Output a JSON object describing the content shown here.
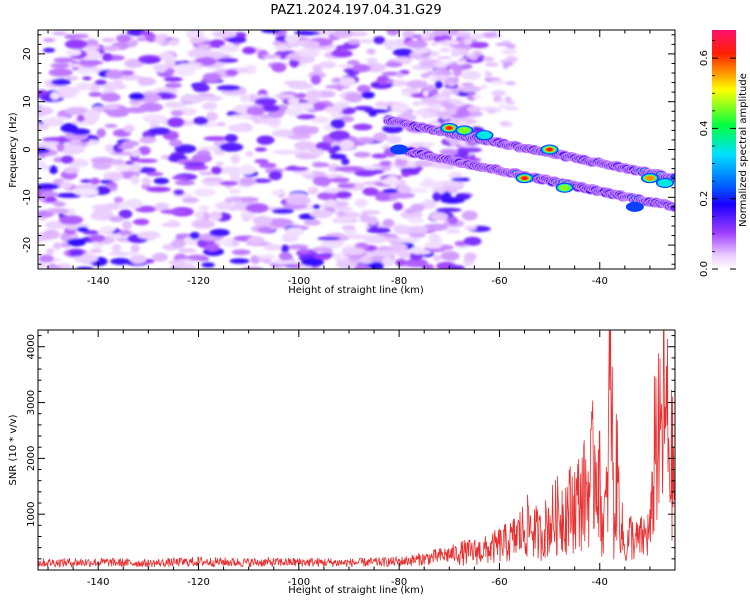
{
  "chart_data": [
    {
      "type": "heatmap",
      "title": "PAZ1.2024.197.04.31.G29",
      "xlabel": "Height of straight line (km)",
      "ylabel": "Frequency (Hz)",
      "xlim": [
        -152,
        -25
      ],
      "ylim": [
        -25,
        25
      ],
      "x_ticks": [
        -140,
        -120,
        -100,
        -80,
        -60,
        -40
      ],
      "y_ticks": [
        20,
        10,
        0,
        -10,
        -20
      ],
      "grid": false,
      "colorbar": {
        "label": "Normalized spectral amplitude",
        "range": [
          0,
          0.68
        ],
        "ticks": [
          0.0,
          0.2,
          0.4,
          0.6
        ],
        "colors": [
          "#ffffff",
          "#e8c8ff",
          "#a040ff",
          "#1a00ff",
          "#0060ff",
          "#00e0ff",
          "#00ff40",
          "#ffff00",
          "#ff2000",
          "#ff1070"
        ]
      },
      "noise_region": {
        "x_range": [
          -152,
          -70
        ],
        "y_range": [
          -25,
          25
        ],
        "level": 0.08
      },
      "ridges": [
        {
          "name": "",
          "x_start": -82,
          "y_start": 6,
          "x_end": -25,
          "y_end": -6,
          "peaks": [
            {
              "x": -70,
              "y": 4.5,
              "value": 0.62
            },
            {
              "x": -67,
              "y": 4,
              "value": 0.55
            },
            {
              "x": -63,
              "y": 3,
              "value": 0.35
            },
            {
              "x": -50,
              "y": 0,
              "value": 0.62
            },
            {
              "x": -30,
              "y": -6,
              "value": 0.6
            },
            {
              "x": -27,
              "y": -7,
              "value": 0.45
            }
          ]
        },
        {
          "name": "",
          "x_start": -80,
          "y_start": 0,
          "x_end": -25,
          "y_end": -12,
          "peaks": [
            {
              "x": -80,
              "y": 0,
              "value": 0.3
            },
            {
              "x": -55,
              "y": -6,
              "value": 0.64
            },
            {
              "x": -47,
              "y": -8,
              "value": 0.5
            },
            {
              "x": -33,
              "y": -12,
              "value": 0.3
            }
          ]
        }
      ]
    },
    {
      "type": "line",
      "title": "",
      "xlabel": "Height of straight line (km)",
      "ylabel": "SNR (10 * v/v)",
      "xlim": [
        -152,
        -25
      ],
      "ylim": [
        0,
        4300
      ],
      "x_ticks": [
        -140,
        -120,
        -100,
        -80,
        -60,
        -40
      ],
      "y_ticks": [
        1000,
        2000,
        3000,
        4000
      ],
      "grid": false,
      "color": "#e83030",
      "series": [
        {
          "name": "",
          "x": [
            -152,
            -140,
            -130,
            -120,
            -110,
            -100,
            -90,
            -80,
            -75,
            -70,
            -66,
            -62,
            -60,
            -58,
            -56,
            -54,
            -52,
            -50,
            -48,
            -46,
            -44,
            -42,
            -40.5,
            -39.5,
            -38.5,
            -37.8,
            -37.2,
            -36.6,
            -36,
            -35,
            -34,
            -33,
            -32,
            -31,
            -30.5,
            -30,
            -29.5,
            -29,
            -28.5,
            -28,
            -27.5,
            -27,
            -26.5,
            -26,
            -25.5,
            -25
          ],
          "y": [
            130,
            140,
            120,
            150,
            135,
            140,
            130,
            150,
            200,
            280,
            320,
            360,
            450,
            500,
            650,
            800,
            600,
            850,
            1000,
            1100,
            1250,
            1500,
            2100,
            800,
            1200,
            4300,
            600,
            1800,
            1100,
            300,
            650,
            500,
            550,
            600,
            650,
            700,
            1100,
            2600,
            2300,
            2200,
            2650,
            2800,
            2500,
            2000,
            1800,
            1300
          ]
        }
      ]
    }
  ]
}
